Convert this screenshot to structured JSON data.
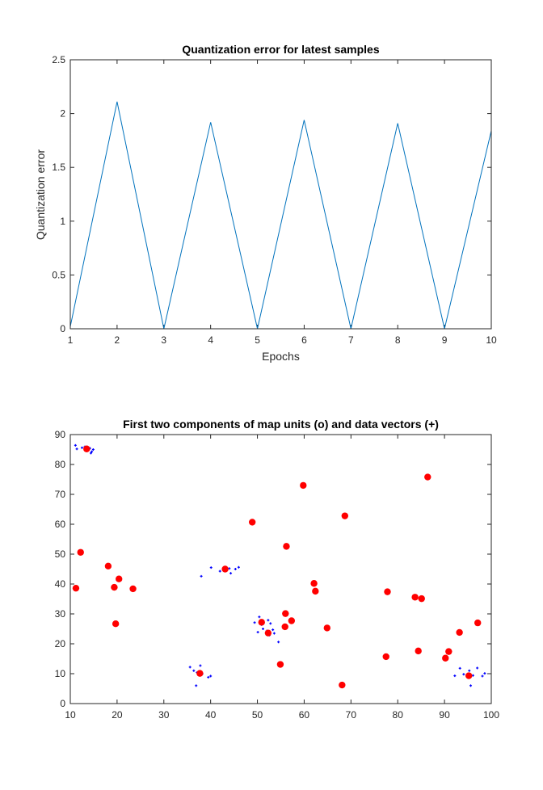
{
  "chart_data": [
    {
      "type": "line",
      "title": "Quantization error for latest samples",
      "xlabel": "Epochs",
      "ylabel": "Quantization error",
      "xlim": [
        1,
        10
      ],
      "ylim": [
        0,
        2.5
      ],
      "xticks": [
        "1",
        "2",
        "3",
        "4",
        "5",
        "6",
        "7",
        "8",
        "9",
        "10"
      ],
      "yticks": [
        "0",
        "0.5",
        "1",
        "1.5",
        "2",
        "2.5"
      ],
      "grid": false,
      "color": "#0072BD",
      "x": [
        1,
        2,
        3,
        4,
        5,
        6,
        7,
        8,
        9,
        10
      ],
      "y": [
        0.02,
        2.11,
        0.0,
        1.92,
        0.0,
        1.94,
        0.0,
        1.91,
        0.0,
        1.84
      ]
    },
    {
      "type": "scatter",
      "title": "First two components of map units (o) and data vectors (+)",
      "xlabel": "",
      "ylabel": "",
      "xlim": [
        10,
        100
      ],
      "ylim": [
        0,
        90
      ],
      "xticks": [
        "10",
        "20",
        "30",
        "40",
        "50",
        "60",
        "70",
        "80",
        "90",
        "100"
      ],
      "yticks": [
        "0",
        "10",
        "20",
        "30",
        "40",
        "50",
        "60",
        "70",
        "80",
        "90"
      ],
      "grid": false,
      "series": [
        {
          "marker": "o",
          "color": "#FF0000",
          "points": [
            [
              13.5,
              85.2
            ],
            [
              12.2,
              50.6
            ],
            [
              11.2,
              38.6
            ],
            [
              18.1,
              46.0
            ],
            [
              20.4,
              41.7
            ],
            [
              19.4,
              38.9
            ],
            [
              23.4,
              38.4
            ],
            [
              19.7,
              26.7
            ],
            [
              37.7,
              10.1
            ],
            [
              43.1,
              45.0
            ],
            [
              48.9,
              60.7
            ],
            [
              56.2,
              52.6
            ],
            [
              59.8,
              73.0
            ],
            [
              68.7,
              62.8
            ],
            [
              86.4,
              75.8
            ],
            [
              62.1,
              40.2
            ],
            [
              62.4,
              37.6
            ],
            [
              50.9,
              27.2
            ],
            [
              52.3,
              23.6
            ],
            [
              56.0,
              30.1
            ],
            [
              57.3,
              27.7
            ],
            [
              55.9,
              25.7
            ],
            [
              54.9,
              13.1
            ],
            [
              64.9,
              25.3
            ],
            [
              68.1,
              6.2
            ],
            [
              77.8,
              37.4
            ],
            [
              83.7,
              35.6
            ],
            [
              85.1,
              35.1
            ],
            [
              77.5,
              15.7
            ],
            [
              84.4,
              17.6
            ],
            [
              90.2,
              15.2
            ],
            [
              90.9,
              17.4
            ],
            [
              93.2,
              23.8
            ],
            [
              97.1,
              27.0
            ],
            [
              95.2,
              9.3
            ]
          ]
        },
        {
          "marker": "+",
          "color": "#0000FF",
          "points": [
            [
              11.1,
              86.4
            ],
            [
              11.4,
              85.2
            ],
            [
              12.5,
              85.6
            ],
            [
              13.1,
              85.9
            ],
            [
              14.2,
              85.4
            ],
            [
              14.6,
              84.3
            ],
            [
              14.9,
              85.0
            ],
            [
              14.4,
              83.8
            ],
            [
              38.0,
              42.6
            ],
            [
              40.1,
              45.5
            ],
            [
              42.0,
              44.3
            ],
            [
              43.1,
              44.8
            ],
            [
              44.0,
              45.2
            ],
            [
              44.3,
              43.6
            ],
            [
              45.3,
              45.0
            ],
            [
              46.0,
              45.6
            ],
            [
              49.4,
              27.1
            ],
            [
              50.4,
              29.0
            ],
            [
              50.9,
              26.4
            ],
            [
              51.2,
              25.0
            ],
            [
              52.0,
              24.3
            ],
            [
              52.3,
              27.9
            ],
            [
              52.8,
              26.8
            ],
            [
              53.3,
              24.7
            ],
            [
              53.6,
              23.5
            ],
            [
              54.5,
              20.6
            ],
            [
              50.1,
              23.9
            ],
            [
              52.6,
              22.9
            ],
            [
              35.6,
              12.2
            ],
            [
              36.4,
              11.0
            ],
            [
              37.1,
              10.4
            ],
            [
              37.8,
              12.7
            ],
            [
              38.2,
              9.9
            ],
            [
              36.9,
              6.0
            ],
            [
              39.5,
              8.8
            ],
            [
              40.0,
              9.2
            ],
            [
              92.2,
              9.3
            ],
            [
              93.3,
              11.8
            ],
            [
              94.1,
              9.8
            ],
            [
              95.3,
              11.0
            ],
            [
              95.6,
              6.0
            ],
            [
              96.1,
              9.4
            ],
            [
              97.0,
              11.9
            ],
            [
              98.1,
              9.2
            ],
            [
              98.6,
              10.1
            ]
          ]
        }
      ]
    }
  ]
}
